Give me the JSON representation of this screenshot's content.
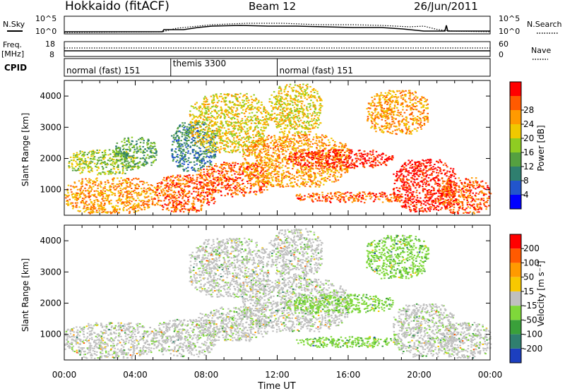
{
  "header": {
    "station": "Hokkaido (fitACF)",
    "beam": "Beam 12",
    "date": "26/Jun/2011"
  },
  "top_panel": {
    "left_label": "N.Sky",
    "right_label": "N.Search",
    "y_ticks": [
      "10^5",
      "10^0"
    ],
    "right_ticks": [
      "10^5",
      "10^0"
    ]
  },
  "freq_panel": {
    "left_label": "Freq.",
    "left_unit": "[MHz]",
    "right_label": "Nave",
    "y_ticks": [
      "18",
      "8"
    ],
    "right_ticks": [
      "60",
      "0"
    ]
  },
  "cpid_panel": {
    "label": "CPID",
    "segments": [
      {
        "text": "normal (fast) 151",
        "start_hr": 0,
        "end_hr": 6
      },
      {
        "text": "themis 3300",
        "start_hr": 6,
        "end_hr": 12
      },
      {
        "text": "normal (fast) 151",
        "start_hr": 12,
        "end_hr": 24
      }
    ]
  },
  "x_axis": {
    "label": "Time UT",
    "ticks": [
      "00:00",
      "04:00",
      "08:00",
      "12:00",
      "16:00",
      "20:00",
      "00:00"
    ]
  },
  "chart_data": [
    {
      "type": "heatmap",
      "panel": "power",
      "ylabel": "Slant Range [km]",
      "yticks": [
        "1000",
        "2000",
        "3000",
        "4000"
      ],
      "xlim_hours": [
        0,
        24
      ],
      "ylim_km": [
        180,
        4500
      ],
      "colorbar": {
        "label": "Power [dB]",
        "ticks": [
          "4",
          "8",
          "12",
          "16",
          "20",
          "24",
          "28"
        ],
        "colors": [
          "#0000ff",
          "#2255cc",
          "#2f7f6f",
          "#55a040",
          "#8fcc22",
          "#f0c800",
          "#ff9a00",
          "#ff5a00",
          "#ff0000"
        ]
      },
      "regions": [
        {
          "t0": 0.0,
          "t1": 5.2,
          "r0": 250,
          "r1": 1400,
          "level": 6
        },
        {
          "t0": 0.2,
          "t1": 4.0,
          "r0": 1500,
          "r1": 2300,
          "level": 4
        },
        {
          "t0": 2.8,
          "t1": 5.2,
          "r0": 1700,
          "r1": 2700,
          "level": 3
        },
        {
          "t0": 5.0,
          "t1": 8.5,
          "r0": 300,
          "r1": 1500,
          "level": 7
        },
        {
          "t0": 6.0,
          "t1": 8.5,
          "r0": 1600,
          "r1": 3200,
          "level": 2
        },
        {
          "t0": 7.0,
          "t1": 11.5,
          "r0": 2200,
          "r1": 4100,
          "level": 5
        },
        {
          "t0": 7.5,
          "t1": 11.5,
          "r0": 800,
          "r1": 1900,
          "level": 7
        },
        {
          "t0": 10.0,
          "t1": 16.0,
          "r0": 1100,
          "r1": 2800,
          "level": 6
        },
        {
          "t0": 11.5,
          "t1": 14.5,
          "r0": 2800,
          "r1": 4400,
          "level": 5
        },
        {
          "t0": 12.5,
          "t1": 18.5,
          "r0": 1700,
          "r1": 2300,
          "level": 8
        },
        {
          "t0": 13.0,
          "t1": 19.0,
          "r0": 600,
          "r1": 950,
          "level": 7
        },
        {
          "t0": 17.0,
          "t1": 20.5,
          "r0": 2800,
          "r1": 4200,
          "level": 6
        },
        {
          "t0": 18.5,
          "t1": 22.0,
          "r0": 300,
          "r1": 2000,
          "level": 8
        },
        {
          "t0": 21.0,
          "t1": 24.0,
          "r0": 250,
          "r1": 1400,
          "level": 7
        }
      ]
    },
    {
      "type": "heatmap",
      "panel": "velocity",
      "ylabel": "Slant Range [km]",
      "yticks": [
        "1000",
        "2000",
        "3000",
        "4000"
      ],
      "xlim_hours": [
        0,
        24
      ],
      "ylim_km": [
        180,
        4500
      ],
      "colorbar": {
        "label": "Velocity [m s⁻¹]",
        "ticks": [
          "200",
          "100",
          "50",
          "15",
          "-15",
          "-50",
          "-100",
          "-200"
        ],
        "colors": [
          "#1c3fbf",
          "#2f7f6f",
          "#3aa03a",
          "#7fd83a",
          "#c0c0c0",
          "#f8c800",
          "#ff9a00",
          "#ff5a00",
          "#ff0000"
        ]
      },
      "regions": [
        {
          "t0": 0.0,
          "t1": 5.2,
          "r0": 250,
          "r1": 1400,
          "level": 4
        },
        {
          "t0": 5.0,
          "t1": 8.5,
          "r0": 300,
          "r1": 1500,
          "level": 4
        },
        {
          "t0": 7.0,
          "t1": 11.5,
          "r0": 2200,
          "r1": 4100,
          "level": 4
        },
        {
          "t0": 7.5,
          "t1": 11.5,
          "r0": 800,
          "r1": 1900,
          "level": 4
        },
        {
          "t0": 10.0,
          "t1": 16.0,
          "r0": 1100,
          "r1": 2800,
          "level": 4
        },
        {
          "t0": 11.5,
          "t1": 14.5,
          "r0": 2800,
          "r1": 4400,
          "level": 4
        },
        {
          "t0": 12.5,
          "t1": 18.5,
          "r0": 1700,
          "r1": 2300,
          "level": 3
        },
        {
          "t0": 13.0,
          "t1": 19.0,
          "r0": 600,
          "r1": 950,
          "level": 3
        },
        {
          "t0": 17.0,
          "t1": 20.5,
          "r0": 2800,
          "r1": 4200,
          "level": 3
        },
        {
          "t0": 18.5,
          "t1": 22.0,
          "r0": 300,
          "r1": 2000,
          "level": 4
        },
        {
          "t0": 21.0,
          "t1": 24.0,
          "r0": 250,
          "r1": 1400,
          "level": 4
        }
      ]
    }
  ]
}
